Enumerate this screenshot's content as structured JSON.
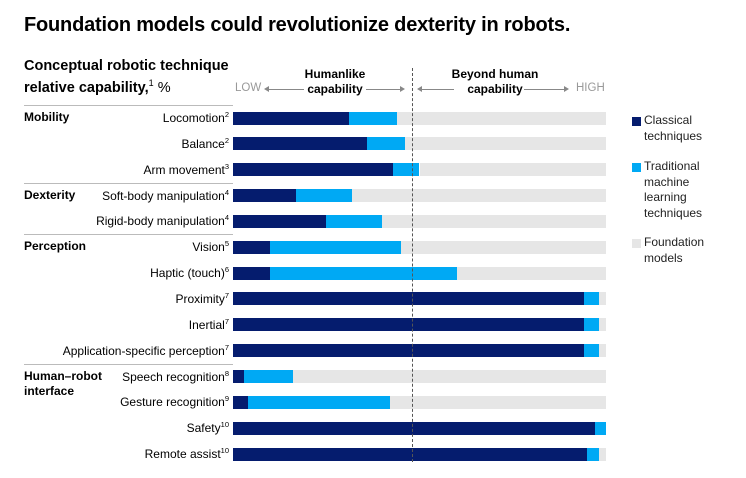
{
  "title": "Foundation models could revolutionize dexterity in robots.",
  "subtitle": {
    "line1": "Conceptual robotic technique",
    "line2": "relative capability,",
    "footnote": "1",
    "unit": " %"
  },
  "header": {
    "low": "LOW",
    "high": "HIGH",
    "humanlike_1": "Humanlike",
    "humanlike_2": "capability",
    "beyond_1": "Beyond human",
    "beyond_2": "capability"
  },
  "legend": [
    {
      "name": "Classical techniques",
      "lines": [
        "Classical",
        "techniques"
      ],
      "color": "#051c6e"
    },
    {
      "name": "Traditional machine learning techniques",
      "lines": [
        "Traditional",
        "machine",
        "learning",
        "techniques"
      ],
      "color": "#00a9f4"
    },
    {
      "name": "Foundation models",
      "lines": [
        "Foundation",
        "models"
      ],
      "color": "#e6e6e6"
    }
  ],
  "chart_data": {
    "type": "bar",
    "stacked": true,
    "orientation": "horizontal",
    "title": "Conceptual robotic technique relative capability, %",
    "xlim": [
      0,
      100
    ],
    "humanlike_threshold": 48,
    "groups": [
      {
        "name": "Mobility",
        "rows": [
          0,
          1,
          2
        ]
      },
      {
        "name": "Dexterity",
        "rows": [
          3,
          4
        ]
      },
      {
        "name": "Perception",
        "rows": [
          5,
          6,
          7,
          8,
          9
        ]
      },
      {
        "name": "Human–robot interface",
        "lines": [
          "Human–robot",
          "interface"
        ],
        "rows": [
          10,
          11,
          12,
          13
        ]
      }
    ],
    "categories": [
      {
        "label": "Locomotion",
        "note": "2"
      },
      {
        "label": "Balance",
        "note": "2"
      },
      {
        "label": "Arm movement",
        "note": "3"
      },
      {
        "label": "Soft-body manipulation",
        "note": "4"
      },
      {
        "label": "Rigid-body manipulation",
        "note": "4"
      },
      {
        "label": "Vision",
        "note": "5"
      },
      {
        "label": "Haptic (touch)",
        "note": "6"
      },
      {
        "label": "Proximity",
        "note": "7"
      },
      {
        "label": "Inertial",
        "note": "7"
      },
      {
        "label": "Application-specific perception",
        "note": "7"
      },
      {
        "label": "Speech recognition",
        "note": "8"
      },
      {
        "label": "Gesture recognition",
        "note": "9"
      },
      {
        "label": "Safety",
        "note": "10"
      },
      {
        "label": "Remote assist",
        "note": "10"
      }
    ],
    "series": [
      {
        "name": "Classical techniques",
        "values": [
          31,
          36,
          43,
          17,
          25,
          10,
          10,
          94,
          94,
          94,
          3,
          4,
          97,
          95
        ]
      },
      {
        "name": "Traditional machine learning techniques",
        "values": [
          13,
          10,
          7,
          15,
          15,
          35,
          50,
          4,
          4,
          4,
          13,
          38,
          3,
          3
        ]
      },
      {
        "name": "Foundation models",
        "values": [
          56,
          54,
          50,
          68,
          60,
          55,
          40,
          2,
          2,
          2,
          84,
          58,
          0,
          2
        ]
      }
    ]
  }
}
